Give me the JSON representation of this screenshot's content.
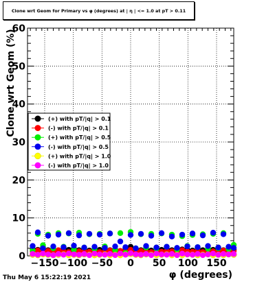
{
  "chart_data": {
    "type": "scatter",
    "title": "Clone wrt Geom for Primary vs φ (degrees) at | η | <= 1.0 at pT > 0.11",
    "xlabel": "φ (degrees)",
    "ylabel": "Clone wrt  Geom (%)",
    "xlim": [
      -180,
      180
    ],
    "ylim": [
      0,
      60
    ],
    "grid": true,
    "legend_position": "left",
    "x_ticks": [
      -150,
      -100,
      -50,
      0,
      50,
      100,
      150
    ],
    "x_tick_labels": [
      "−150",
      "−100",
      "−50",
      "0",
      "50",
      "100",
      "150"
    ],
    "y_ticks": [
      0,
      10,
      20,
      30,
      40,
      50,
      60
    ],
    "y_tick_labels": [
      "0",
      "10",
      "20",
      "30",
      "40",
      "50",
      "60"
    ],
    "x": [
      -171,
      -162,
      -153,
      -144,
      -135,
      -126,
      -117,
      -108,
      -99,
      -90,
      -81,
      -72,
      -63,
      -54,
      -45,
      -36,
      -27,
      -18,
      -9,
      0,
      9,
      18,
      27,
      36,
      45,
      54,
      63,
      72,
      81,
      90,
      99,
      108,
      117,
      126,
      135,
      144,
      153,
      162,
      171,
      180
    ],
    "series": [
      {
        "name": "(+) with pT/|q| > 0.1",
        "color": "#000000",
        "values": [
          1.8,
          1.6,
          2.2,
          1.5,
          1.7,
          1.4,
          2.0,
          1.6,
          1.9,
          1.5,
          2.1,
          1.4,
          1.8,
          1.6,
          2.3,
          1.5,
          1.7,
          1.3,
          2.0,
          2.4,
          1.6,
          1.5,
          1.9,
          1.4,
          2.2,
          1.6,
          1.8,
          1.5,
          2.0,
          1.7,
          1.6,
          1.4,
          2.1,
          1.5,
          1.8,
          1.6,
          2.2,
          1.5,
          1.7,
          1.6
        ]
      },
      {
        "name": "(-) with pT/|q| > 0.1",
        "color": "#ff0000",
        "values": [
          1.2,
          1.4,
          1.0,
          1.3,
          1.1,
          1.5,
          1.2,
          1.0,
          1.4,
          1.2,
          1.3,
          1.1,
          1.5,
          1.0,
          1.2,
          1.4,
          1.1,
          1.3,
          1.2,
          1.6,
          1.1,
          1.3,
          1.2,
          1.0,
          1.4,
          1.1,
          1.3,
          1.2,
          1.0,
          1.5,
          1.2,
          1.1,
          1.4,
          1.0,
          1.3,
          1.2,
          1.1,
          1.4,
          1.2,
          1.3
        ]
      },
      {
        "name": "(+) with pT/|q| > 0.5",
        "color": "#00ee00",
        "values": [
          1.5,
          5.8,
          2.8,
          5.6,
          2.0,
          6.0,
          2.4,
          5.9,
          1.6,
          6.1,
          2.2,
          5.7,
          1.8,
          5.8,
          2.5,
          5.9,
          1.5,
          6.0,
          0.8,
          6.3,
          2.0,
          5.7,
          2.2,
          5.8,
          1.9,
          5.9,
          2.4,
          5.6,
          1.7,
          5.2,
          2.6,
          5.5,
          2.3,
          5.7,
          1.9,
          5.8,
          2.0,
          6.0,
          1.8,
          2.9
        ]
      },
      {
        "name": "(-) with pT/|q| > 0.5",
        "color": "#0000ee",
        "values": [
          2.6,
          6.2,
          2.0,
          5.3,
          2.5,
          5.6,
          2.3,
          6.0,
          2.7,
          5.4,
          2.2,
          5.8,
          2.4,
          5.6,
          2.1,
          5.9,
          2.5,
          3.8,
          2.3,
          5.5,
          2.0,
          5.8,
          2.6,
          5.3,
          2.2,
          6.0,
          2.4,
          5.1,
          2.1,
          5.6,
          2.5,
          5.9,
          2.3,
          5.4,
          2.6,
          6.1,
          2.2,
          5.7,
          2.4,
          2.1
        ]
      },
      {
        "name": "(+) with pT/|q| > 1.0",
        "color": "#ffff00",
        "values": [
          0.3,
          0.2,
          0.4,
          0.3,
          0.2,
          0.3,
          0.4,
          0.2,
          0.3,
          0.2,
          0.4,
          0.3,
          0.2,
          0.3,
          0.4,
          0.2,
          0.3,
          0.2,
          0.4,
          0.5,
          0.3,
          0.2,
          0.4,
          0.3,
          0.2,
          0.3,
          0.4,
          0.2,
          0.3,
          0.2,
          0.4,
          0.3,
          0.2,
          0.3,
          0.4,
          0.2,
          0.3,
          0.2,
          0.4,
          0.3
        ]
      },
      {
        "name": "(-) with pT/|q| > 1.0",
        "color": "#ff00ff",
        "values": [
          0.5,
          0.3,
          0.6,
          0.4,
          0.2,
          0.5,
          0.3,
          0.6,
          0.4,
          0.3,
          0.5,
          0.2,
          0.6,
          0.4,
          0.3,
          0.5,
          0.2,
          0.6,
          0.3,
          0.7,
          0.4,
          0.3,
          0.5,
          0.2,
          0.6,
          0.4,
          0.3,
          0.5,
          0.2,
          0.6,
          0.4,
          0.3,
          0.5,
          0.2,
          0.4,
          0.6,
          0.3,
          0.5,
          0.4,
          0.5
        ]
      }
    ]
  },
  "footer": {
    "timestamp": "Thu May  6 15:22:19 2021"
  }
}
